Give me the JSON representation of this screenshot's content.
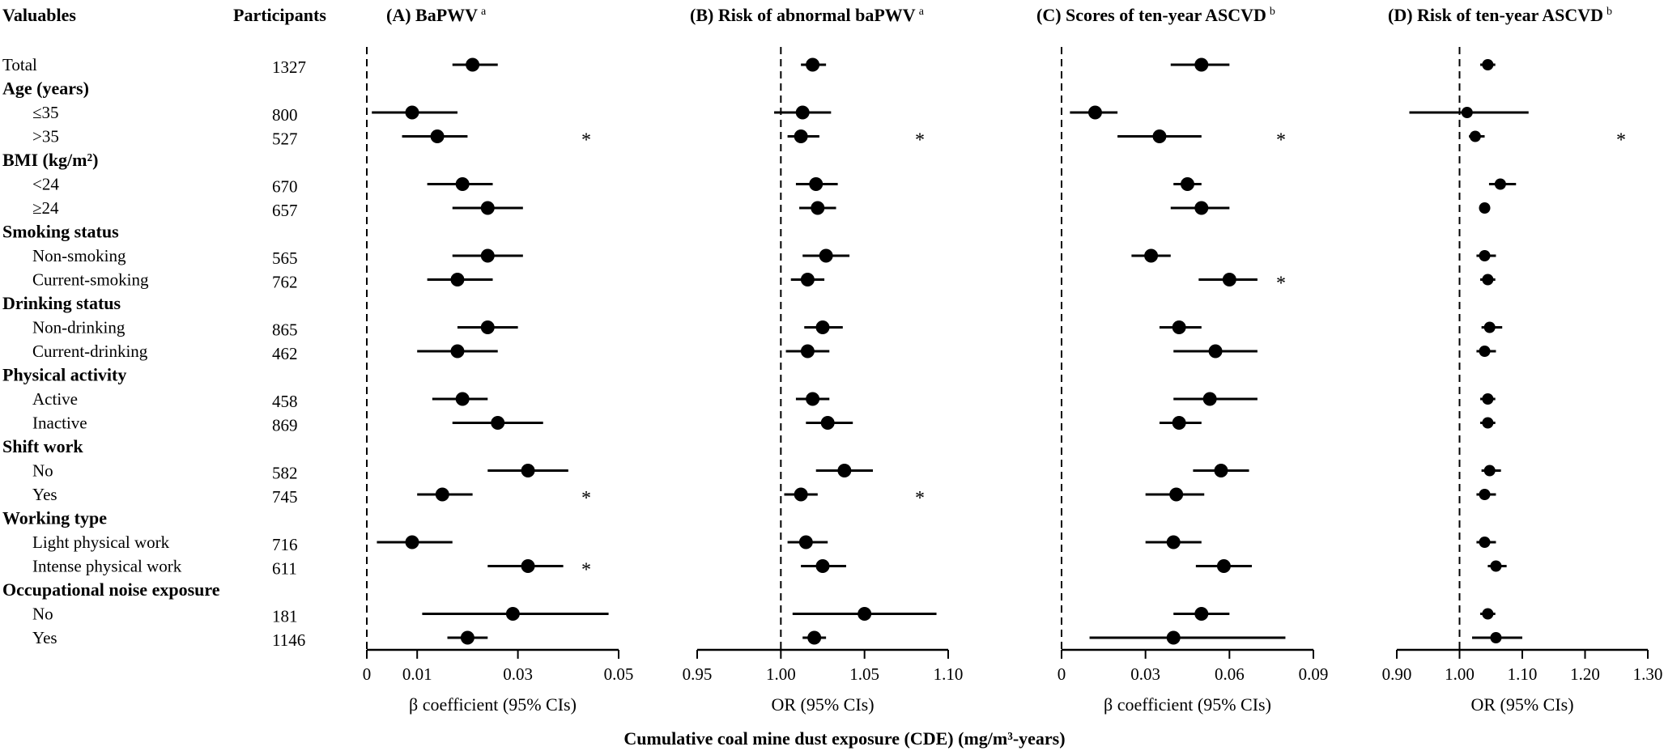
{
  "headers": {
    "variables": "Valuables",
    "participants": "Participants",
    "common_xlabel": "Cumulative coal mine dust exposure (CDE) (mg/m³-years)"
  },
  "rows": [
    {
      "type": "item",
      "label": "Total",
      "n": "1327"
    },
    {
      "type": "group",
      "label": "Age (years)"
    },
    {
      "type": "item",
      "label": "≤35",
      "n": "800"
    },
    {
      "type": "item",
      "label": ">35",
      "n": "527"
    },
    {
      "type": "group",
      "label": "BMI (kg/m²)"
    },
    {
      "type": "item",
      "label": "<24",
      "n": "670"
    },
    {
      "type": "item",
      "label": "≥24",
      "n": "657"
    },
    {
      "type": "group",
      "label": "Smoking status"
    },
    {
      "type": "item",
      "label": "Non-smoking",
      "n": "565"
    },
    {
      "type": "item",
      "label": "Current-smoking",
      "n": "762"
    },
    {
      "type": "group",
      "label": "Drinking status"
    },
    {
      "type": "item",
      "label": "Non-drinking",
      "n": "865"
    },
    {
      "type": "item",
      "label": "Current-drinking",
      "n": "462"
    },
    {
      "type": "group",
      "label": "Physical activity"
    },
    {
      "type": "item",
      "label": "Active",
      "n": "458"
    },
    {
      "type": "item",
      "label": "Inactive",
      "n": "869"
    },
    {
      "type": "group",
      "label": "Shift work"
    },
    {
      "type": "item",
      "label": "No",
      "n": "582"
    },
    {
      "type": "item",
      "label": "Yes",
      "n": "745"
    },
    {
      "type": "group",
      "label": "Working type"
    },
    {
      "type": "item",
      "label": "Light physical work",
      "n": "716"
    },
    {
      "type": "item",
      "label": "Intense physical work",
      "n": "611"
    },
    {
      "type": "group",
      "label": "Occupational noise exposure"
    },
    {
      "type": "item",
      "label": "No",
      "n": "181"
    },
    {
      "type": "item",
      "label": "Yes",
      "n": "1146"
    }
  ],
  "chart_data": [
    {
      "type": "forest",
      "title": "(A) BaPWV",
      "superscript": "a",
      "xlabel": "β coefficient (95% CIs)",
      "xlim": [
        0,
        0.05
      ],
      "ref": 0,
      "ticks": [
        0,
        0.01,
        0.03,
        0.05
      ],
      "tick_labels": [
        "0",
        "0.01",
        "0.03",
        "0.05"
      ],
      "star": "*",
      "points": [
        {
          "est": 0.021,
          "lo": 0.017,
          "hi": 0.026,
          "star": false
        },
        null,
        {
          "est": 0.009,
          "lo": 0.001,
          "hi": 0.018,
          "star": false
        },
        {
          "est": 0.014,
          "lo": 0.007,
          "hi": 0.02,
          "star": true
        },
        null,
        {
          "est": 0.019,
          "lo": 0.012,
          "hi": 0.025,
          "star": false
        },
        {
          "est": 0.024,
          "lo": 0.017,
          "hi": 0.031,
          "star": false
        },
        null,
        {
          "est": 0.024,
          "lo": 0.017,
          "hi": 0.031,
          "star": false
        },
        {
          "est": 0.018,
          "lo": 0.012,
          "hi": 0.025,
          "star": false
        },
        null,
        {
          "est": 0.024,
          "lo": 0.018,
          "hi": 0.03,
          "star": false
        },
        {
          "est": 0.018,
          "lo": 0.01,
          "hi": 0.026,
          "star": false
        },
        null,
        {
          "est": 0.019,
          "lo": 0.013,
          "hi": 0.024,
          "star": false
        },
        {
          "est": 0.026,
          "lo": 0.017,
          "hi": 0.035,
          "star": false
        },
        null,
        {
          "est": 0.032,
          "lo": 0.024,
          "hi": 0.04,
          "star": false
        },
        {
          "est": 0.015,
          "lo": 0.01,
          "hi": 0.021,
          "star": true
        },
        null,
        {
          "est": 0.009,
          "lo": 0.002,
          "hi": 0.017,
          "star": false
        },
        {
          "est": 0.032,
          "lo": 0.024,
          "hi": 0.039,
          "star": true
        },
        null,
        {
          "est": 0.029,
          "lo": 0.011,
          "hi": 0.048,
          "star": false
        },
        {
          "est": 0.02,
          "lo": 0.016,
          "hi": 0.024,
          "star": false
        }
      ]
    },
    {
      "type": "forest",
      "title": "(B) Risk of abnormal baPWV",
      "superscript": "a",
      "xlabel": "OR (95% CIs)",
      "xlim": [
        0.95,
        1.1
      ],
      "ref": 1.0,
      "ticks": [
        0.95,
        1.0,
        1.05,
        1.1
      ],
      "tick_labels": [
        "0.95",
        "1.00",
        "1.05",
        "1.10"
      ],
      "star": "*",
      "points": [
        {
          "est": 1.019,
          "lo": 1.012,
          "hi": 1.027,
          "star": false
        },
        null,
        {
          "est": 1.013,
          "lo": 0.996,
          "hi": 1.03,
          "star": false
        },
        {
          "est": 1.012,
          "lo": 1.004,
          "hi": 1.023,
          "star": true
        },
        null,
        {
          "est": 1.021,
          "lo": 1.009,
          "hi": 1.034,
          "star": false
        },
        {
          "est": 1.022,
          "lo": 1.011,
          "hi": 1.033,
          "star": false
        },
        null,
        {
          "est": 1.027,
          "lo": 1.013,
          "hi": 1.041,
          "star": false
        },
        {
          "est": 1.016,
          "lo": 1.006,
          "hi": 1.026,
          "star": false
        },
        null,
        {
          "est": 1.025,
          "lo": 1.014,
          "hi": 1.037,
          "star": false
        },
        {
          "est": 1.016,
          "lo": 1.003,
          "hi": 1.029,
          "star": false
        },
        null,
        {
          "est": 1.019,
          "lo": 1.009,
          "hi": 1.029,
          "star": false
        },
        {
          "est": 1.028,
          "lo": 1.015,
          "hi": 1.043,
          "star": false
        },
        null,
        {
          "est": 1.038,
          "lo": 1.021,
          "hi": 1.055,
          "star": false
        },
        {
          "est": 1.012,
          "lo": 1.002,
          "hi": 1.022,
          "star": true
        },
        null,
        {
          "est": 1.015,
          "lo": 1.004,
          "hi": 1.028,
          "star": false
        },
        {
          "est": 1.025,
          "lo": 1.012,
          "hi": 1.039,
          "star": false
        },
        null,
        {
          "est": 1.05,
          "lo": 1.007,
          "hi": 1.093,
          "star": false
        },
        {
          "est": 1.02,
          "lo": 1.013,
          "hi": 1.027,
          "star": false
        }
      ]
    },
    {
      "type": "forest",
      "title": "(C) Scores of ten-year ASCVD",
      "superscript": "b",
      "xlabel": "β coefficient (95% CIs)",
      "xlim": [
        0,
        0.09
      ],
      "ref": 0,
      "ticks": [
        0,
        0.03,
        0.06,
        0.09
      ],
      "tick_labels": [
        "0",
        "0.03",
        "0.06",
        "0.09"
      ],
      "star": "*",
      "points": [
        {
          "est": 0.05,
          "lo": 0.039,
          "hi": 0.06,
          "star": false
        },
        null,
        {
          "est": 0.012,
          "lo": 0.003,
          "hi": 0.02,
          "star": false
        },
        {
          "est": 0.035,
          "lo": 0.02,
          "hi": 0.05,
          "star": true
        },
        null,
        {
          "est": 0.045,
          "lo": 0.04,
          "hi": 0.05,
          "star": false
        },
        {
          "est": 0.05,
          "lo": 0.039,
          "hi": 0.06,
          "star": false
        },
        null,
        {
          "est": 0.032,
          "lo": 0.025,
          "hi": 0.039,
          "star": false
        },
        {
          "est": 0.06,
          "lo": 0.049,
          "hi": 0.07,
          "star": true
        },
        null,
        {
          "est": 0.042,
          "lo": 0.035,
          "hi": 0.05,
          "star": false
        },
        {
          "est": 0.055,
          "lo": 0.04,
          "hi": 0.07,
          "star": false
        },
        null,
        {
          "est": 0.053,
          "lo": 0.04,
          "hi": 0.07,
          "star": false
        },
        {
          "est": 0.042,
          "lo": 0.035,
          "hi": 0.05,
          "star": false
        },
        null,
        {
          "est": 0.057,
          "lo": 0.047,
          "hi": 0.067,
          "star": false
        },
        {
          "est": 0.041,
          "lo": 0.03,
          "hi": 0.051,
          "star": false
        },
        null,
        {
          "est": 0.04,
          "lo": 0.03,
          "hi": 0.05,
          "star": false
        },
        {
          "est": 0.058,
          "lo": 0.048,
          "hi": 0.068,
          "star": false
        },
        null,
        {
          "est": 0.05,
          "lo": 0.04,
          "hi": 0.06,
          "star": false
        },
        {
          "est": 0.04,
          "lo": 0.01,
          "hi": 0.08,
          "star": false
        }
      ]
    },
    {
      "type": "forest",
      "title": "(D) Risk of ten-year ASCVD",
      "superscript": "b",
      "xlabel": "OR (95% CIs)",
      "xlim": [
        0.9,
        1.3
      ],
      "ref": 1.0,
      "ticks": [
        0.9,
        1.0,
        1.1,
        1.2,
        1.3
      ],
      "tick_labels": [
        "0.90",
        "1.00",
        "1.10",
        "1.20",
        "1.30"
      ],
      "star": "*",
      "points": [
        {
          "est": 1.045,
          "lo": 1.033,
          "hi": 1.057,
          "star": false
        },
        null,
        {
          "est": 1.012,
          "lo": 0.92,
          "hi": 1.11,
          "star": false
        },
        {
          "est": 1.025,
          "lo": 1.015,
          "hi": 1.04,
          "star": true
        },
        null,
        {
          "est": 1.065,
          "lo": 1.047,
          "hi": 1.09,
          "star": false
        },
        {
          "est": 1.04,
          "lo": 1.032,
          "hi": 1.048,
          "star": false
        },
        null,
        {
          "est": 1.04,
          "lo": 1.027,
          "hi": 1.058,
          "star": false
        },
        {
          "est": 1.045,
          "lo": 1.033,
          "hi": 1.057,
          "star": false
        },
        null,
        {
          "est": 1.048,
          "lo": 1.035,
          "hi": 1.068,
          "star": false
        },
        {
          "est": 1.04,
          "lo": 1.027,
          "hi": 1.058,
          "star": false
        },
        null,
        {
          "est": 1.045,
          "lo": 1.033,
          "hi": 1.057,
          "star": false
        },
        {
          "est": 1.045,
          "lo": 1.033,
          "hi": 1.057,
          "star": false
        },
        null,
        {
          "est": 1.048,
          "lo": 1.035,
          "hi": 1.066,
          "star": false
        },
        {
          "est": 1.04,
          "lo": 1.027,
          "hi": 1.058,
          "star": false
        },
        null,
        {
          "est": 1.04,
          "lo": 1.027,
          "hi": 1.058,
          "star": false
        },
        {
          "est": 1.058,
          "lo": 1.045,
          "hi": 1.075,
          "star": false
        },
        null,
        {
          "est": 1.045,
          "lo": 1.033,
          "hi": 1.057,
          "star": false
        },
        {
          "est": 1.058,
          "lo": 1.02,
          "hi": 1.1,
          "star": false
        }
      ]
    }
  ]
}
